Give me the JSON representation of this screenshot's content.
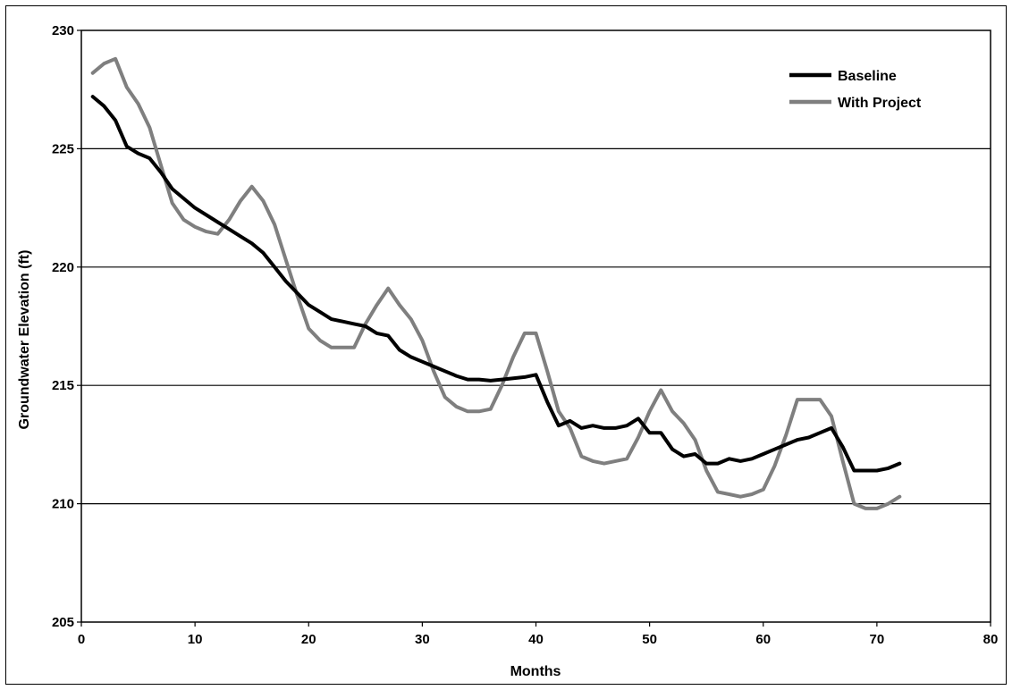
{
  "chart_data": {
    "type": "line",
    "title": "",
    "xlabel": "Months",
    "ylabel": "Groundwater Elevation (ft)",
    "xlim": [
      0,
      80
    ],
    "ylim": [
      205,
      230
    ],
    "x_ticks": [
      0,
      10,
      20,
      30,
      40,
      50,
      60,
      70,
      80
    ],
    "y_ticks": [
      205,
      210,
      215,
      220,
      225,
      230
    ],
    "grid": "horizontal",
    "legend_position": "top-right",
    "x": [
      1,
      2,
      3,
      4,
      5,
      6,
      7,
      8,
      9,
      10,
      11,
      12,
      13,
      14,
      15,
      16,
      17,
      18,
      19,
      20,
      21,
      22,
      23,
      24,
      25,
      26,
      27,
      28,
      29,
      30,
      31,
      32,
      33,
      34,
      35,
      36,
      37,
      38,
      39,
      40,
      41,
      42,
      43,
      44,
      45,
      46,
      47,
      48,
      49,
      50,
      51,
      52,
      53,
      54,
      55,
      56,
      57,
      58,
      59,
      60,
      61,
      62,
      63,
      64,
      65,
      66,
      67,
      68,
      69,
      70,
      71,
      72
    ],
    "series": [
      {
        "name": "Baseline",
        "color": "#000000",
        "values": [
          227.2,
          226.8,
          226.2,
          225.1,
          224.8,
          224.6,
          224.0,
          223.3,
          222.9,
          222.5,
          222.2,
          221.9,
          221.6,
          221.3,
          221.0,
          220.6,
          220.0,
          219.4,
          218.9,
          218.4,
          218.1,
          217.8,
          217.7,
          217.6,
          217.5,
          217.2,
          217.1,
          216.5,
          216.2,
          216.0,
          215.8,
          215.6,
          215.4,
          215.25,
          215.25,
          215.2,
          215.25,
          215.3,
          215.35,
          215.45,
          214.3,
          213.3,
          213.5,
          213.2,
          213.3,
          213.2,
          213.2,
          213.3,
          213.6,
          213.0,
          213.0,
          212.3,
          212.0,
          212.1,
          211.7,
          211.7,
          211.9,
          211.8,
          211.9,
          212.1,
          212.3,
          212.5,
          212.7,
          212.8,
          213.0,
          213.2,
          212.4,
          211.4,
          211.4,
          211.4,
          211.5,
          211.7
        ]
      },
      {
        "name": "With Project",
        "color": "#7f7f7f",
        "values": [
          228.2,
          228.6,
          228.8,
          227.6,
          226.9,
          225.9,
          224.3,
          222.7,
          222.0,
          221.7,
          221.5,
          221.4,
          222.0,
          222.8,
          223.4,
          222.8,
          221.8,
          220.3,
          218.8,
          217.4,
          216.9,
          216.6,
          216.6,
          216.6,
          217.6,
          218.4,
          219.1,
          218.4,
          217.8,
          216.9,
          215.6,
          214.5,
          214.1,
          213.9,
          213.9,
          214.0,
          215.0,
          216.2,
          217.2,
          217.2,
          215.6,
          213.9,
          213.2,
          212.0,
          211.8,
          211.7,
          211.8,
          211.9,
          212.8,
          213.9,
          214.8,
          213.9,
          213.4,
          212.7,
          211.4,
          210.5,
          210.4,
          210.3,
          210.4,
          210.6,
          211.6,
          212.9,
          214.4,
          214.4,
          214.4,
          213.7,
          211.8,
          210.0,
          209.8,
          209.8,
          210.0,
          210.3
        ]
      }
    ]
  }
}
